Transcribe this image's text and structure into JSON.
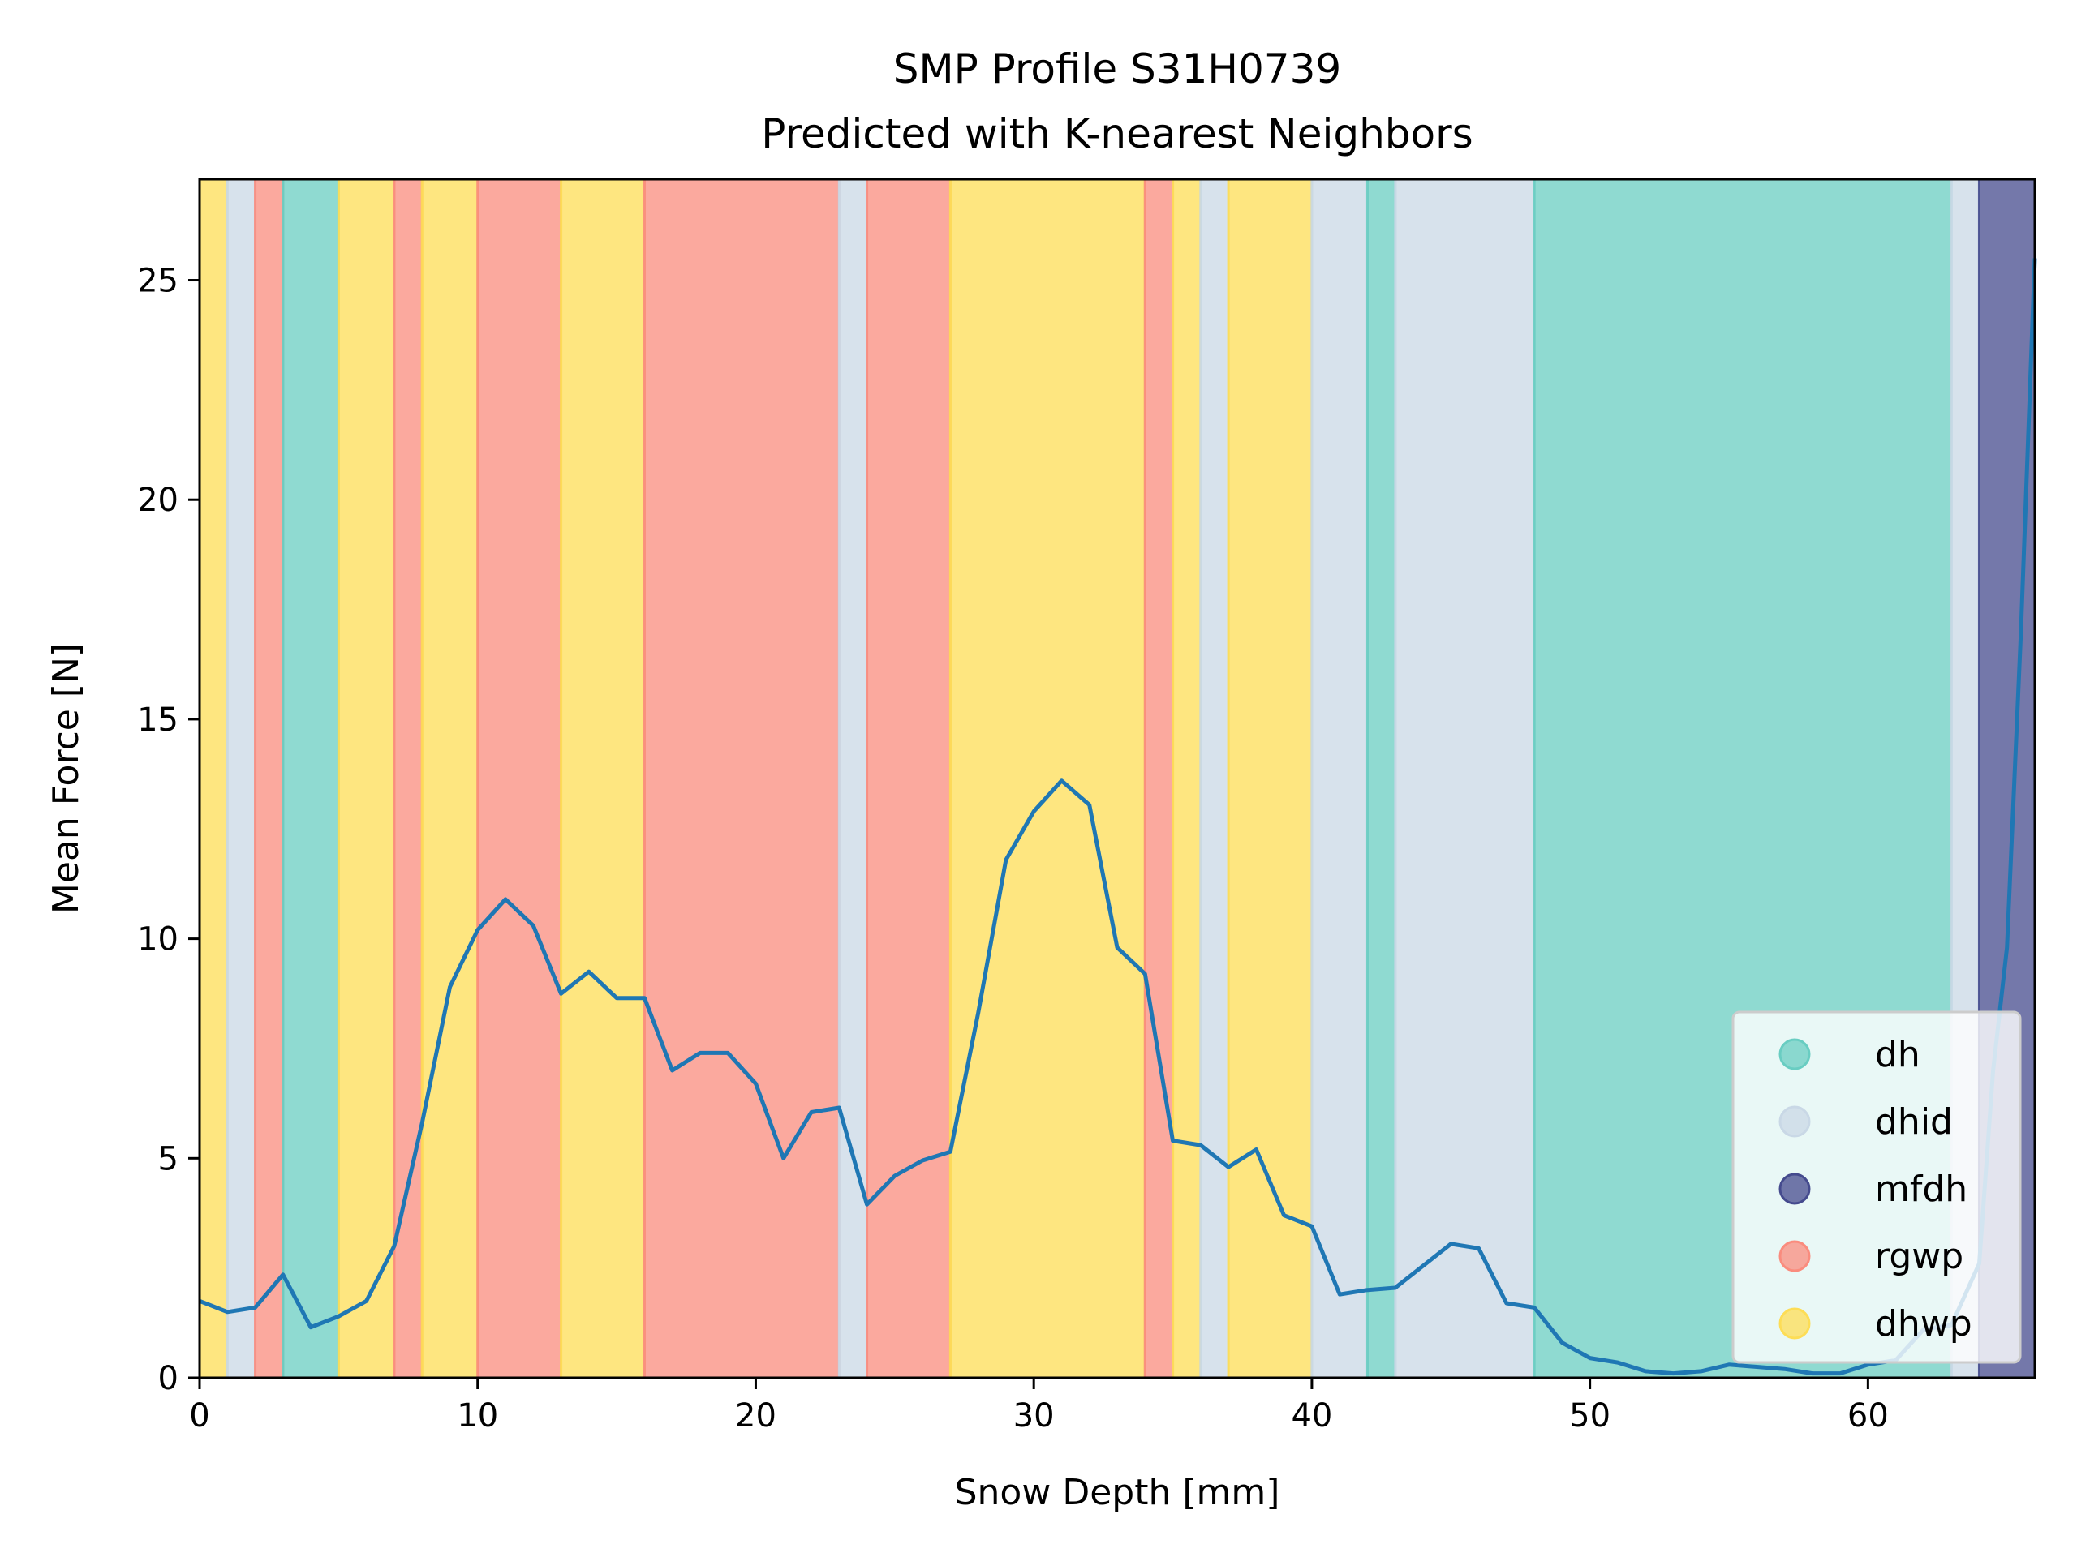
{
  "chart_data": {
    "type": "line",
    "title": "SMP Profile S31H0739",
    "subtitle": "Predicted with K-nearest Neighbors",
    "xlabel": "Snow Depth [mm]",
    "ylabel": "Mean Force [N]",
    "xlim": [
      0,
      66
    ],
    "ylim": [
      0,
      27.3
    ],
    "x_ticks": [
      0,
      10,
      20,
      30,
      40,
      50,
      60
    ],
    "y_ticks": [
      0,
      5,
      10,
      15,
      20,
      25
    ],
    "grid": false,
    "legend_position": "bottom-right",
    "classes": [
      {
        "name": "dh",
        "color": "#69cdc2"
      },
      {
        "name": "dhid",
        "color": "#c9d8e6"
      },
      {
        "name": "mfdh",
        "color": "#454b8e"
      },
      {
        "name": "rgwp",
        "color": "#fa8c7e"
      },
      {
        "name": "dhwp",
        "color": "#fddd56"
      }
    ],
    "segments": [
      {
        "start": 0,
        "end": 1,
        "class": "dhwp"
      },
      {
        "start": 1,
        "end": 2,
        "class": "dhid"
      },
      {
        "start": 2,
        "end": 3,
        "class": "rgwp"
      },
      {
        "start": 3,
        "end": 5,
        "class": "dh"
      },
      {
        "start": 5,
        "end": 7,
        "class": "dhwp"
      },
      {
        "start": 7,
        "end": 8,
        "class": "rgwp"
      },
      {
        "start": 8,
        "end": 10,
        "class": "dhwp"
      },
      {
        "start": 10,
        "end": 13,
        "class": "rgwp"
      },
      {
        "start": 13,
        "end": 16,
        "class": "dhwp"
      },
      {
        "start": 16,
        "end": 23,
        "class": "rgwp"
      },
      {
        "start": 23,
        "end": 24,
        "class": "dhid"
      },
      {
        "start": 24,
        "end": 27,
        "class": "rgwp"
      },
      {
        "start": 27,
        "end": 34,
        "class": "dhwp"
      },
      {
        "start": 34,
        "end": 35,
        "class": "rgwp"
      },
      {
        "start": 35,
        "end": 36,
        "class": "dhwp"
      },
      {
        "start": 36,
        "end": 37,
        "class": "dhid"
      },
      {
        "start": 37,
        "end": 40,
        "class": "dhwp"
      },
      {
        "start": 40,
        "end": 42,
        "class": "dhid"
      },
      {
        "start": 42,
        "end": 43,
        "class": "dh"
      },
      {
        "start": 43,
        "end": 48,
        "class": "dhid"
      },
      {
        "start": 48,
        "end": 63,
        "class": "dh"
      },
      {
        "start": 63,
        "end": 64,
        "class": "dhid"
      },
      {
        "start": 64,
        "end": 66,
        "class": "mfdh"
      }
    ],
    "series": [
      {
        "color": "#1f77b4",
        "x": [
          0,
          1,
          2,
          3,
          4,
          5,
          6,
          7,
          8,
          9,
          10,
          11,
          12,
          13,
          14,
          15,
          16,
          17,
          18,
          19,
          20,
          21,
          22,
          23,
          24,
          25,
          26,
          27,
          28,
          29,
          30,
          31,
          32,
          33,
          34,
          35,
          36,
          37,
          38,
          39,
          40,
          41,
          42,
          43,
          44,
          45,
          46,
          47,
          48,
          49,
          50,
          51,
          52,
          53,
          54,
          55,
          56,
          57,
          58,
          59,
          60,
          61,
          62,
          63,
          64,
          64.5,
          65,
          65.5,
          66
        ],
        "y": [
          1.75,
          1.5,
          1.6,
          2.35,
          1.15,
          1.4,
          1.75,
          3.0,
          5.8,
          8.9,
          10.2,
          10.9,
          10.3,
          8.75,
          9.25,
          8.65,
          8.65,
          7.0,
          7.4,
          7.4,
          6.7,
          5.0,
          6.05,
          6.15,
          3.95,
          4.6,
          4.95,
          5.15,
          8.3,
          11.8,
          12.9,
          13.6,
          13.05,
          9.8,
          9.2,
          5.4,
          5.3,
          4.8,
          5.2,
          3.7,
          3.45,
          1.9,
          2.0,
          2.05,
          2.55,
          3.05,
          2.95,
          1.7,
          1.6,
          0.8,
          0.45,
          0.35,
          0.15,
          0.1,
          0.15,
          0.3,
          0.25,
          0.2,
          0.1,
          0.1,
          0.3,
          0.4,
          1.1,
          1.2,
          2.6,
          7.0,
          9.8,
          17.0,
          25.5
        ]
      }
    ]
  }
}
